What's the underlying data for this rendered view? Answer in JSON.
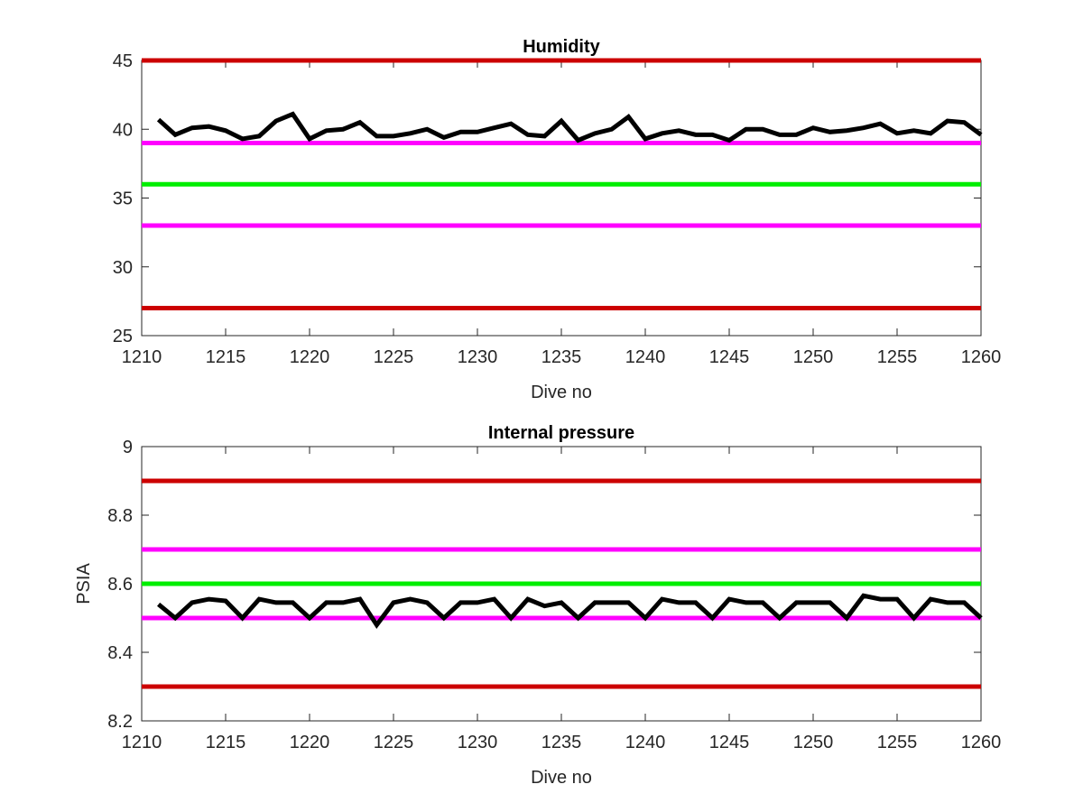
{
  "chart_data": [
    {
      "type": "line",
      "title": "Humidity",
      "xlabel": "Dive no",
      "ylabel": "",
      "xlim": [
        1210,
        1260
      ],
      "ylim": [
        25,
        45
      ],
      "xticks": [
        1210,
        1215,
        1220,
        1225,
        1230,
        1235,
        1240,
        1245,
        1250,
        1255,
        1260
      ],
      "yticks": [
        25,
        30,
        35,
        40,
        45
      ],
      "grid": false,
      "reference_lines": [
        {
          "y": 45,
          "color": "#cc0000"
        },
        {
          "y": 39,
          "color": "#ff00ff"
        },
        {
          "y": 36,
          "color": "#00ee00"
        },
        {
          "y": 33,
          "color": "#ff00ff"
        },
        {
          "y": 27,
          "color": "#cc0000"
        }
      ],
      "series": [
        {
          "color": "#000000",
          "x": [
            1211,
            1212,
            1213,
            1214,
            1215,
            1216,
            1217,
            1218,
            1219,
            1220,
            1221,
            1222,
            1223,
            1224,
            1225,
            1226,
            1227,
            1228,
            1229,
            1230,
            1231,
            1232,
            1233,
            1234,
            1235,
            1236,
            1237,
            1238,
            1239,
            1240,
            1241,
            1242,
            1243,
            1244,
            1245,
            1246,
            1247,
            1248,
            1249,
            1250,
            1251,
            1252,
            1253,
            1254,
            1255,
            1256,
            1257,
            1258,
            1259,
            1260
          ],
          "y": [
            40.7,
            39.6,
            40.1,
            40.2,
            39.9,
            39.3,
            39.5,
            40.6,
            41.1,
            39.3,
            39.9,
            40.0,
            40.5,
            39.5,
            39.5,
            39.7,
            40.0,
            39.4,
            39.8,
            39.8,
            40.1,
            40.4,
            39.6,
            39.5,
            40.6,
            39.2,
            39.7,
            40.0,
            40.9,
            39.3,
            39.7,
            39.9,
            39.6,
            39.6,
            39.2,
            40.0,
            40.0,
            39.6,
            39.6,
            40.1,
            39.8,
            39.9,
            40.1,
            40.4,
            39.7,
            39.9,
            39.7,
            40.6,
            40.5,
            39.6
          ]
        }
      ]
    },
    {
      "type": "line",
      "title": "Internal pressure",
      "xlabel": "Dive no",
      "ylabel": "PSIA",
      "xlim": [
        1210,
        1260
      ],
      "ylim": [
        8.2,
        9
      ],
      "xticks": [
        1210,
        1215,
        1220,
        1225,
        1230,
        1235,
        1240,
        1245,
        1250,
        1255,
        1260
      ],
      "yticks": [
        8.2,
        8.4,
        8.6,
        8.8,
        9
      ],
      "ytick_labels": [
        "8.2",
        "8.4",
        "8.6",
        "8.8",
        "9"
      ],
      "grid": false,
      "reference_lines": [
        {
          "y": 8.9,
          "color": "#cc0000"
        },
        {
          "y": 8.7,
          "color": "#ff00ff"
        },
        {
          "y": 8.6,
          "color": "#00ee00"
        },
        {
          "y": 8.5,
          "color": "#ff00ff"
        },
        {
          "y": 8.3,
          "color": "#cc0000"
        }
      ],
      "series": [
        {
          "color": "#000000",
          "x": [
            1211,
            1212,
            1213,
            1214,
            1215,
            1216,
            1217,
            1218,
            1219,
            1220,
            1221,
            1222,
            1223,
            1224,
            1225,
            1226,
            1227,
            1228,
            1229,
            1230,
            1231,
            1232,
            1233,
            1234,
            1235,
            1236,
            1237,
            1238,
            1239,
            1240,
            1241,
            1242,
            1243,
            1244,
            1245,
            1246,
            1247,
            1248,
            1249,
            1250,
            1251,
            1252,
            1253,
            1254,
            1255,
            1256,
            1257,
            1258,
            1259,
            1260
          ],
          "y": [
            8.54,
            8.5,
            8.545,
            8.555,
            8.55,
            8.5,
            8.555,
            8.545,
            8.545,
            8.5,
            8.545,
            8.545,
            8.555,
            8.48,
            8.545,
            8.555,
            8.545,
            8.5,
            8.545,
            8.545,
            8.555,
            8.5,
            8.555,
            8.535,
            8.545,
            8.5,
            8.545,
            8.545,
            8.545,
            8.5,
            8.555,
            8.545,
            8.545,
            8.5,
            8.555,
            8.545,
            8.545,
            8.5,
            8.545,
            8.545,
            8.545,
            8.5,
            8.565,
            8.555,
            8.555,
            8.5,
            8.555,
            8.545,
            8.545,
            8.5
          ]
        }
      ]
    }
  ]
}
